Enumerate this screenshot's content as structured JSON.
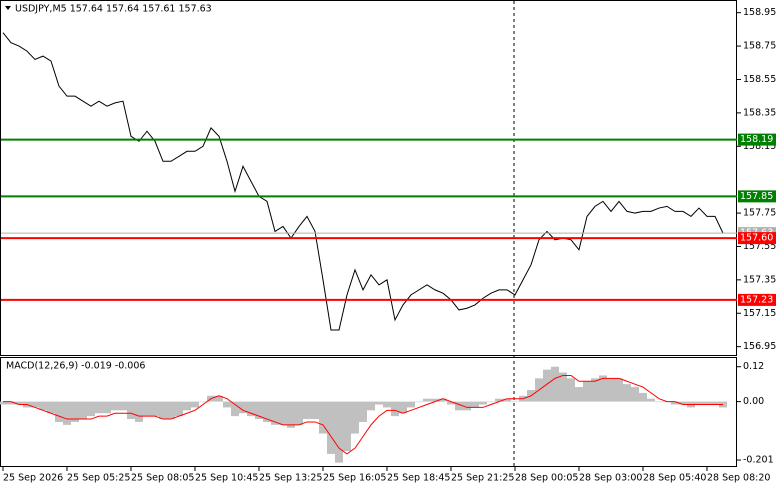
{
  "chart_data": [
    {
      "type": "line",
      "title": "USDJPY,M5  157.64 157.64 157.61 157.63",
      "color": "#000000",
      "values": [
        158.83,
        158.77,
        158.75,
        158.72,
        158.67,
        158.69,
        158.66,
        158.51,
        158.45,
        158.45,
        158.42,
        158.39,
        158.42,
        158.39,
        158.41,
        158.42,
        158.21,
        158.18,
        158.24,
        158.18,
        158.06,
        158.06,
        158.09,
        158.12,
        158.12,
        158.15,
        158.26,
        158.21,
        158.06,
        157.88,
        158.03,
        157.94,
        157.85,
        157.82,
        157.64,
        157.67,
        157.6,
        157.67,
        157.73,
        157.64,
        157.35,
        157.05,
        157.05,
        157.26,
        157.41,
        157.29,
        157.38,
        157.32,
        157.35,
        157.11,
        157.2,
        157.26,
        157.29,
        157.32,
        157.29,
        157.27,
        157.23,
        157.17,
        157.18,
        157.2,
        157.24,
        157.27,
        157.29,
        157.29,
        157.26,
        157.35,
        157.44,
        157.59,
        157.64,
        157.59,
        157.6,
        157.59,
        157.53,
        157.73,
        157.79,
        157.82,
        157.76,
        157.82,
        157.76,
        157.75,
        157.76,
        157.76,
        157.78,
        157.79,
        157.76,
        157.76,
        157.73,
        157.78,
        157.73,
        157.73,
        157.63
      ],
      "ylim": [
        156.9,
        159.02
      ],
      "yticks": [
        158.95,
        158.75,
        158.55,
        158.35,
        158.15,
        157.75,
        157.55,
        157.35,
        157.15,
        156.95
      ],
      "levels": [
        {
          "value": 158.19,
          "color": "#008000"
        },
        {
          "value": 157.85,
          "color": "#008000"
        },
        {
          "value": 157.23,
          "color": "#ff0000"
        },
        {
          "value": 157.63,
          "color": "#b0b0b0"
        },
        {
          "value": 157.6,
          "label": "157.60",
          "color": "#ff0000"
        }
      ]
    },
    {
      "type": "bar",
      "title": "MACD(12,26,9) -0.019 -0.006",
      "color": "#c0c0c0",
      "signal_color": "#ff0000",
      "categories": [
        "25 Sep 2026",
        null,
        null,
        null,
        null,
        null,
        null,
        null,
        "25 Sep 05:25",
        null,
        null,
        null,
        null,
        null,
        null,
        null,
        "25 Sep 08:05",
        null,
        null,
        null,
        null,
        null,
        null,
        null,
        "25 Sep 10:45",
        null,
        null,
        null,
        null,
        null,
        null,
        null,
        "25 Sep 13:25",
        null,
        null,
        null,
        null,
        null,
        null,
        null,
        "25 Sep 16:05",
        null,
        null,
        null,
        null,
        null,
        null,
        null,
        "25 Sep 18:45",
        null,
        null,
        null,
        null,
        null,
        null,
        null,
        "25 Sep 21:25",
        null,
        null,
        null,
        null,
        null,
        null,
        null,
        "28 Sep 00:05",
        null,
        null,
        null,
        null,
        null,
        null,
        null,
        "28 Sep 03:00",
        null,
        null,
        null,
        null,
        null,
        null,
        null,
        "28 Sep 05:40",
        null,
        null,
        null,
        null,
        null,
        null,
        null,
        "28 Sep 08:20",
        null,
        null
      ],
      "values": [
        -0.01,
        -0.01,
        -0.01,
        -0.02,
        -0.02,
        -0.03,
        -0.04,
        -0.07,
        -0.08,
        -0.07,
        -0.06,
        -0.05,
        -0.04,
        -0.04,
        -0.03,
        -0.03,
        -0.06,
        -0.07,
        -0.05,
        -0.05,
        -0.06,
        -0.06,
        -0.05,
        -0.03,
        -0.02,
        0,
        0.02,
        0.02,
        -0.02,
        -0.05,
        -0.04,
        -0.05,
        -0.06,
        -0.07,
        -0.08,
        -0.08,
        -0.09,
        -0.08,
        -0.06,
        -0.06,
        -0.11,
        -0.18,
        -0.21,
        -0.17,
        -0.11,
        -0.07,
        -0.03,
        -0.01,
        -0.02,
        -0.05,
        -0.04,
        -0.02,
        0,
        0.01,
        0.01,
        0.01,
        -0.01,
        -0.03,
        -0.03,
        -0.02,
        -0.01,
        0,
        0.01,
        0.01,
        0,
        0.02,
        0.04,
        0.08,
        0.11,
        0.12,
        0.1,
        0.08,
        0.05,
        0.07,
        0.08,
        0.09,
        0.08,
        0.08,
        0.06,
        0.05,
        0.03,
        0.01,
        0,
        0,
        -0.01,
        -0.01,
        -0.02,
        -0.01,
        -0.01,
        -0.01,
        -0.02
      ],
      "signal": [
        0,
        0,
        -0.01,
        -0.01,
        -0.02,
        -0.03,
        -0.04,
        -0.05,
        -0.06,
        -0.06,
        -0.06,
        -0.06,
        -0.05,
        -0.05,
        -0.04,
        -0.04,
        -0.04,
        -0.05,
        -0.05,
        -0.05,
        -0.06,
        -0.06,
        -0.05,
        -0.04,
        -0.03,
        -0.01,
        0.01,
        0.02,
        0.01,
        -0.01,
        -0.03,
        -0.04,
        -0.05,
        -0.06,
        -0.07,
        -0.08,
        -0.08,
        -0.08,
        -0.07,
        -0.07,
        -0.08,
        -0.12,
        -0.16,
        -0.18,
        -0.16,
        -0.12,
        -0.08,
        -0.05,
        -0.03,
        -0.03,
        -0.04,
        -0.03,
        -0.02,
        -0.01,
        0,
        0.01,
        0,
        -0.01,
        -0.02,
        -0.02,
        -0.02,
        -0.01,
        0,
        0.01,
        0.01,
        0.01,
        0.02,
        0.04,
        0.06,
        0.08,
        0.09,
        0.09,
        0.07,
        0.07,
        0.07,
        0.08,
        0.08,
        0.08,
        0.07,
        0.06,
        0.05,
        0.03,
        0.01,
        0,
        0,
        -0.01,
        -0.01,
        -0.01,
        -0.01,
        -0.01,
        -0.01
      ],
      "ylim": [
        -0.225,
        0.15
      ],
      "yticks": [
        0.12,
        {
          "value": 0,
          "label": "0.00"
        },
        -0.201
      ]
    }
  ]
}
